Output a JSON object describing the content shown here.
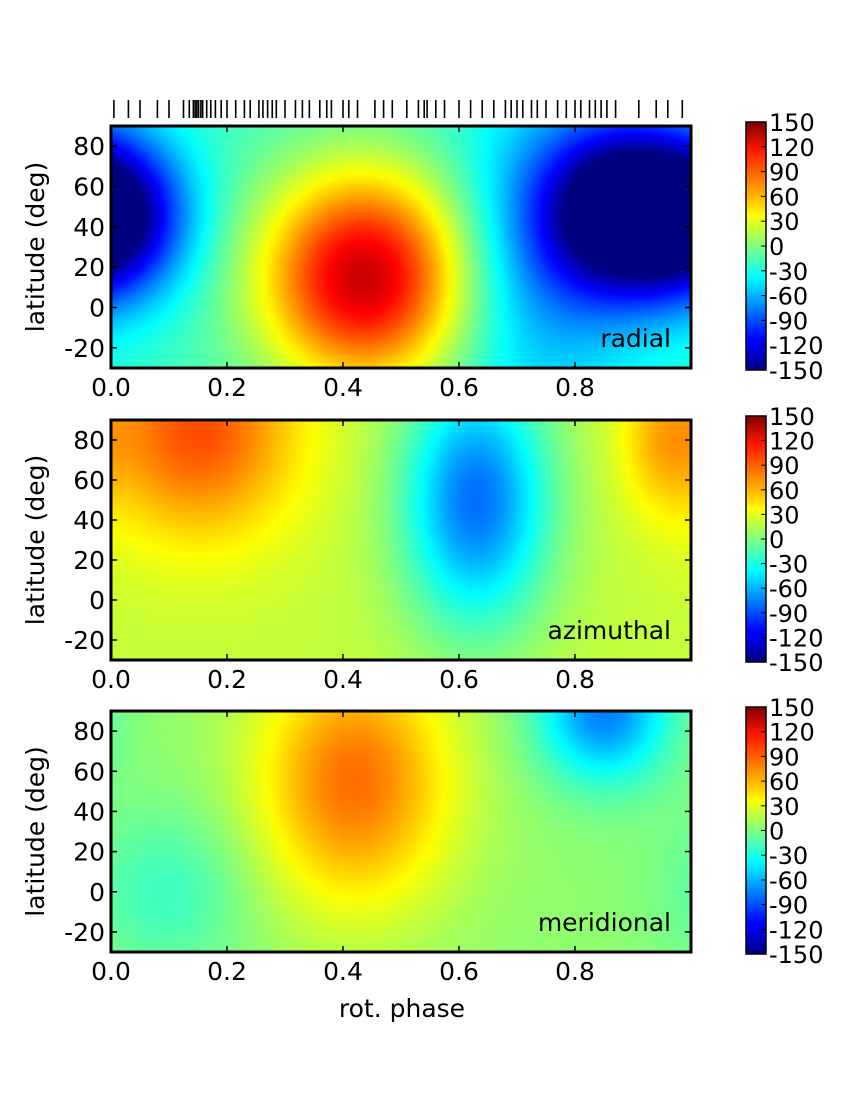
{
  "chart_data": {
    "type": "heatmap",
    "colormap": "jet",
    "x": {
      "label": "rot. phase",
      "range": [
        0.0,
        1.0
      ],
      "ticks": [
        0.0,
        0.2,
        0.4,
        0.6,
        0.8
      ],
      "tick_labels": [
        "0.0",
        "0.2",
        "0.4",
        "0.6",
        "0.8"
      ]
    },
    "y": {
      "label": "latitude (deg)",
      "range": [
        -30,
        90
      ],
      "ticks": [
        -20,
        0,
        20,
        40,
        60,
        80
      ],
      "tick_labels": [
        "-20",
        "0",
        "20",
        "40",
        "60",
        "80"
      ]
    },
    "colorbar": {
      "range": [
        -150,
        150
      ],
      "tick_labels": [
        "150",
        "120",
        "90",
        "60",
        "30",
        "0",
        "-30",
        "-60",
        "-90",
        "-120",
        "-150"
      ]
    },
    "observation_phases": [
      0.005,
      0.03,
      0.05,
      0.08,
      0.1,
      0.125,
      0.135,
      0.142,
      0.145,
      0.148,
      0.151,
      0.155,
      0.158,
      0.165,
      0.172,
      0.18,
      0.19,
      0.2,
      0.215,
      0.23,
      0.24,
      0.255,
      0.262,
      0.27,
      0.278,
      0.285,
      0.3,
      0.318,
      0.33,
      0.342,
      0.36,
      0.372,
      0.38,
      0.4,
      0.41,
      0.425,
      0.455,
      0.47,
      0.485,
      0.51,
      0.53,
      0.54,
      0.545,
      0.56,
      0.575,
      0.6,
      0.62,
      0.64,
      0.66,
      0.68,
      0.69,
      0.7,
      0.71,
      0.725,
      0.735,
      0.75,
      0.77,
      0.785,
      0.8,
      0.81,
      0.825,
      0.835,
      0.845,
      0.855,
      0.87,
      0.91,
      0.94,
      0.96,
      0.985
    ],
    "panels": [
      {
        "label": "radial",
        "show_observation_ticks": true,
        "features": [
          {
            "x": 0.44,
            "y": 15,
            "sx": 0.13,
            "sy": 38,
            "amp": 150
          },
          {
            "x": 0.01,
            "y": 45,
            "sx": 0.09,
            "sy": 28,
            "amp": -115
          },
          {
            "x": 0.88,
            "y": 48,
            "sx": 0.1,
            "sy": 30,
            "amp": -150
          },
          {
            "x": 0.73,
            "y": 20,
            "sx": 0.12,
            "sy": 60,
            "amp": -45
          }
        ],
        "baseline": -20
      },
      {
        "label": "azimuthal",
        "show_observation_ticks": false,
        "features": [
          {
            "x": 0.15,
            "y": 85,
            "sx": 0.12,
            "sy": 38,
            "amp": 70
          },
          {
            "x": 0.63,
            "y": 50,
            "sx": 0.09,
            "sy": 45,
            "amp": -100
          },
          {
            "x": 0.95,
            "y": 80,
            "sx": 0.05,
            "sy": 25,
            "amp": 30
          }
        ],
        "baseline": 20
      },
      {
        "label": "meridional",
        "show_observation_ticks": false,
        "features": [
          {
            "x": 0.42,
            "y": 55,
            "sx": 0.12,
            "sy": 45,
            "amp": 75
          },
          {
            "x": 0.85,
            "y": 90,
            "sx": 0.08,
            "sy": 25,
            "amp": -80
          },
          {
            "x": 0.1,
            "y": 0,
            "sx": 0.1,
            "sy": 30,
            "amp": -25
          }
        ],
        "baseline": 5
      }
    ]
  }
}
